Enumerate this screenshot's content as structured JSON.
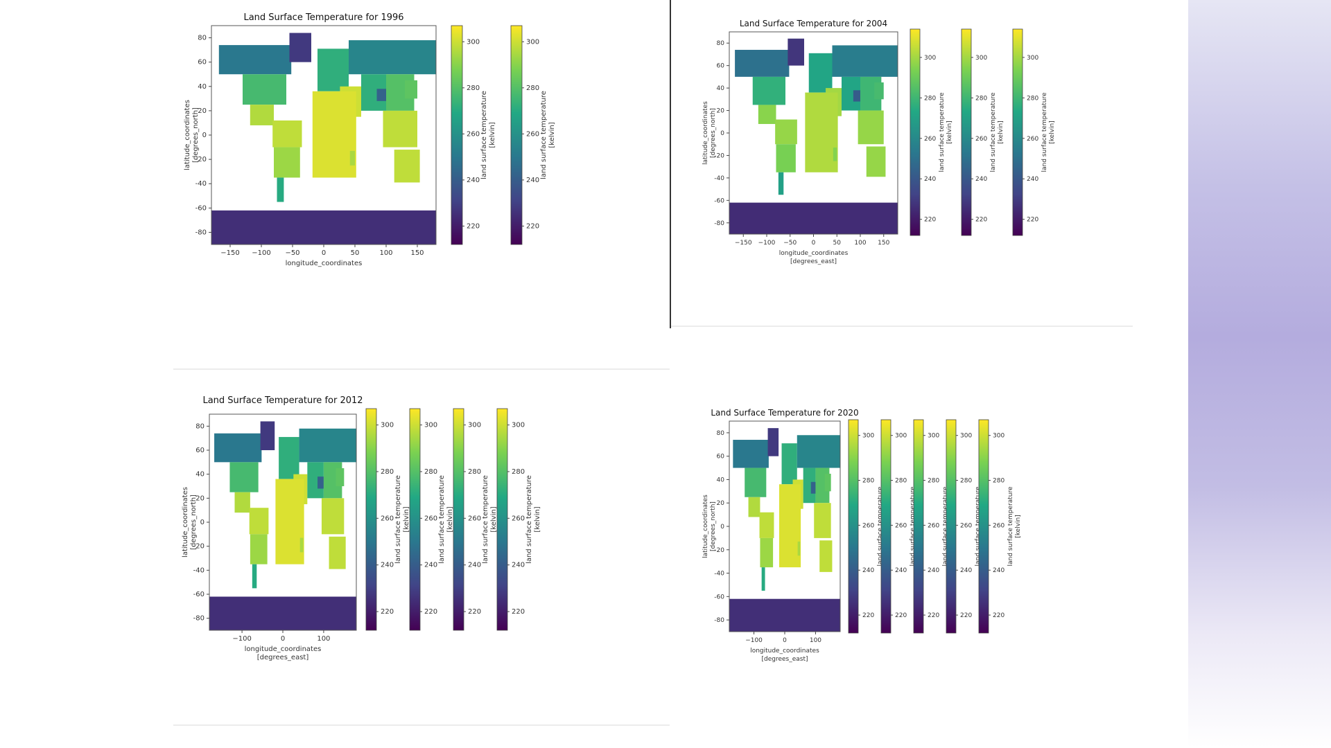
{
  "chart_data": [
    {
      "type": "heatmap",
      "title": "Land Surface Temperature for 1996",
      "xlabel": "longitude_coordinates",
      "xlabel_unit": "",
      "ylabel": "latitude_coordinates",
      "ylabel_unit": "[degrees_north]",
      "xticks": [
        -150,
        -100,
        -50,
        0,
        50,
        100,
        150
      ],
      "yticks": [
        80,
        60,
        40,
        20,
        0,
        -20,
        -40,
        -60,
        -80
      ],
      "xlim": [
        -180,
        180
      ],
      "ylim": [
        -90,
        90
      ],
      "colorbar_ticks": [
        300,
        280,
        260,
        240,
        220
      ],
      "colorbar_range": [
        212,
        307
      ],
      "colorbar_label": "land surface temperature",
      "colorbar_unit": "[kelvin]",
      "colorbar_count": 2,
      "colormap": "viridis"
    },
    {
      "type": "heatmap",
      "title": "Land Surface Temperature for 2004",
      "xlabel": "longitude_coordinates",
      "xlabel_unit": "[degrees_east]",
      "ylabel": "latitude_coordinates",
      "ylabel_unit": "[degrees_north]",
      "xticks": [
        -150,
        -100,
        -50,
        0,
        50,
        100,
        150
      ],
      "yticks": [
        80,
        60,
        40,
        20,
        0,
        -20,
        -40,
        -60,
        -80
      ],
      "xlim": [
        -180,
        180
      ],
      "ylim": [
        -90,
        90
      ],
      "colorbar_ticks": [
        300,
        280,
        260,
        240,
        220
      ],
      "colorbar_range": [
        212,
        314
      ],
      "colorbar_label": "land surface temperature",
      "colorbar_unit": "[kelvin]",
      "colorbar_count": 3,
      "colormap": "viridis"
    },
    {
      "type": "heatmap",
      "title": "Land Surface Temperature for 2012",
      "xlabel": "longitude_coordinates",
      "xlabel_unit": "[degrees_east]",
      "ylabel": "latitude_coordinates",
      "ylabel_unit": "[degrees_north]",
      "xticks": [
        -100,
        0,
        100
      ],
      "yticks": [
        80,
        60,
        40,
        20,
        0,
        -20,
        -40,
        -60,
        -80
      ],
      "xlim": [
        -180,
        180
      ],
      "ylim": [
        -90,
        90
      ],
      "colorbar_ticks": [
        300,
        280,
        260,
        240,
        220
      ],
      "colorbar_range": [
        212,
        307
      ],
      "colorbar_label": "land surface temperature",
      "colorbar_unit": "[kelvin]",
      "colorbar_count": 4,
      "colormap": "viridis"
    },
    {
      "type": "heatmap",
      "title": "Land Surface Temperature for 2020",
      "xlabel": "longitude_coordinates",
      "xlabel_unit": "[degrees_east]",
      "ylabel": "latitude_coordinates",
      "ylabel_unit": "[degrees_north]",
      "xticks": [
        -100,
        0,
        100
      ],
      "yticks": [
        80,
        60,
        40,
        20,
        0,
        -20,
        -40,
        -60,
        -80
      ],
      "xlim": [
        -180,
        180
      ],
      "ylim": [
        -90,
        90
      ],
      "colorbar_ticks": [
        300,
        280,
        260,
        240,
        220
      ],
      "colorbar_range": [
        212,
        307
      ],
      "colorbar_label": "land surface temperature",
      "colorbar_unit": "[kelvin]",
      "colorbar_count": 5,
      "colormap": "viridis"
    }
  ],
  "colors": {
    "viridis": [
      "#440154",
      "#414487",
      "#2a788e",
      "#22a884",
      "#7ad151",
      "#fde725"
    ],
    "background_accent": "#b4acde"
  }
}
